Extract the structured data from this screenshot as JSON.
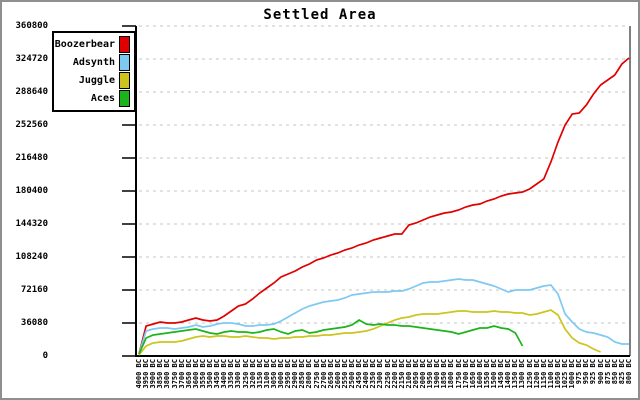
{
  "chart_data": {
    "type": "line",
    "title": "Settled Area",
    "xlabel": "",
    "ylabel": "",
    "ylim": [
      0,
      360800
    ],
    "grid": "horizontal-dashed",
    "legend_position": "top-left",
    "y_ticks": [
      0,
      36080,
      72160,
      108240,
      144320,
      180400,
      216480,
      252560,
      288640,
      324720,
      360800
    ],
    "x_tick_labels": [
      "4000 BC",
      "3950 BC",
      "3900 BC",
      "3850 BC",
      "3800 BC",
      "3750 BC",
      "3700 BC",
      "3650 BC",
      "3600 BC",
      "3550 BC",
      "3500 BC",
      "3450 BC",
      "3400 BC",
      "3350 BC",
      "3300 BC",
      "3250 BC",
      "3200 BC",
      "3150 BC",
      "3100 BC",
      "3050 BC",
      "3000 BC",
      "2950 BC",
      "2900 BC",
      "2850 BC",
      "2800 BC",
      "2750 BC",
      "2700 BC",
      "2650 BC",
      "2600 BC",
      "2550 BC",
      "2500 BC",
      "2450 BC",
      "2400 BC",
      "2350 BC",
      "2300 BC",
      "2250 BC",
      "2200 BC",
      "2150 BC",
      "2100 BC",
      "2050 BC",
      "2000 BC",
      "1950 BC",
      "1900 BC",
      "1850 BC",
      "1800 BC",
      "1750 BC",
      "1700 BC",
      "1650 BC",
      "1600 BC",
      "1550 BC",
      "1500 BC",
      "1450 BC",
      "1400 BC",
      "1350 BC",
      "1300 BC",
      "1250 BC",
      "1200 BC",
      "1150 BC",
      "1100 BC",
      "1050 BC",
      "1025 BC",
      "1000 BC",
      "975 BC",
      "950 BC",
      "925 BC",
      "900 BC",
      "875 BC",
      "850 BC",
      "825 BC",
      "800 BC"
    ],
    "series": [
      {
        "name": "Boozerbear",
        "color": "#e00000",
        "values": [
          2200,
          32800,
          35000,
          37200,
          36100,
          36100,
          37200,
          39400,
          41500,
          39400,
          38300,
          39400,
          43700,
          49200,
          54700,
          56900,
          62300,
          68900,
          74300,
          79800,
          86400,
          89700,
          92900,
          97300,
          100600,
          105000,
          107100,
          110400,
          112600,
          115900,
          118100,
          121400,
          123500,
          126800,
          129000,
          131200,
          133400,
          133400,
          143200,
          145400,
          148700,
          152000,
          154200,
          156300,
          157400,
          159600,
          162900,
          165100,
          166200,
          169500,
          171700,
          174900,
          177100,
          178200,
          179300,
          182600,
          188100,
          193500,
          212100,
          234000,
          252600,
          264600,
          265700,
          274400,
          286500,
          296300,
          301800,
          307200,
          319300,
          325800
        ]
      },
      {
        "name": "Adsynth",
        "color": "#7ec9f2",
        "values": [
          2200,
          27300,
          29500,
          30600,
          30600,
          29500,
          30600,
          31700,
          33900,
          31700,
          32800,
          35000,
          36100,
          36100,
          35000,
          32800,
          32800,
          33900,
          33900,
          35000,
          38300,
          42600,
          47000,
          51400,
          54700,
          56900,
          59000,
          60100,
          61200,
          63400,
          66700,
          67800,
          68900,
          70000,
          70000,
          70000,
          71100,
          71100,
          73200,
          76500,
          79800,
          80900,
          80900,
          82000,
          83100,
          84200,
          83100,
          83100,
          80900,
          78700,
          76500,
          73200,
          70000,
          72200,
          72200,
          72200,
          74300,
          76500,
          77600,
          67800,
          45900,
          37200,
          29500,
          26200,
          25100,
          23000,
          20800,
          15300,
          13100,
          13100
        ]
      },
      {
        "name": "Juggle",
        "color": "#cdc41e",
        "values": [
          1100,
          10900,
          14200,
          15300,
          15300,
          15300,
          16400,
          18600,
          20800,
          21900,
          20800,
          21900,
          21900,
          20800,
          20800,
          21900,
          20800,
          19700,
          19700,
          18600,
          19700,
          19700,
          20800,
          20800,
          21900,
          21900,
          23000,
          23000,
          24100,
          25100,
          25100,
          26200,
          27300,
          29500,
          32800,
          36100,
          39400,
          41500,
          42600,
          44800,
          45900,
          45900,
          45900,
          47000,
          48100,
          49200,
          49200,
          48100,
          48100,
          48100,
          49200,
          48100,
          48100,
          47000,
          47000,
          44800,
          45900,
          48100,
          50300,
          44800,
          29500,
          19700,
          14200,
          12000,
          7700,
          4400
        ]
      },
      {
        "name": "Aces",
        "color": "#1bb41b",
        "values": [
          2200,
          19700,
          23000,
          24100,
          25100,
          26200,
          27300,
          28400,
          29500,
          27300,
          25100,
          24100,
          26200,
          27300,
          26200,
          26200,
          25100,
          26200,
          28400,
          29500,
          26200,
          24100,
          27300,
          28400,
          25100,
          26200,
          28400,
          29500,
          30600,
          31700,
          33900,
          39400,
          35000,
          33900,
          35000,
          33900,
          33900,
          32800,
          32800,
          31700,
          30600,
          29500,
          28400,
          27300,
          26200,
          24100,
          26200,
          28400,
          30600,
          30600,
          32800,
          30600,
          29500,
          25100,
          10900
        ]
      }
    ]
  }
}
